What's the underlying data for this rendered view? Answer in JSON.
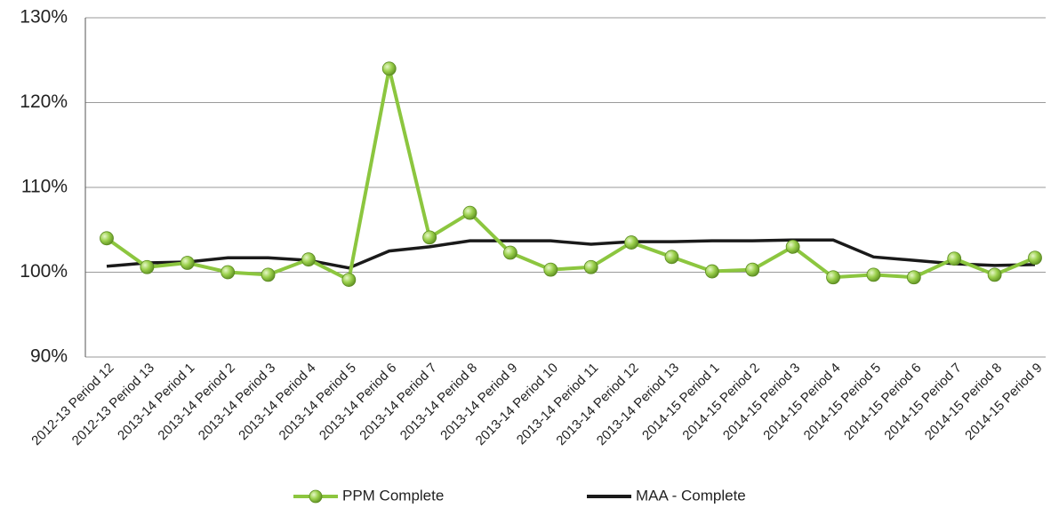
{
  "chart_data": {
    "type": "line",
    "categories": [
      "2012-13 Period 12",
      "2012-13 Period 13",
      "2013-14 Period 1",
      "2013-14 Period 2",
      "2013-14 Period 3",
      "2013-14 Period 4",
      "2013-14 Period 5",
      "2013-14 Period 6",
      "2013-14 Period 7",
      "2013-14 Period 8",
      "2013-14 Period 9",
      "2013-14 Period 10",
      "2013-14 Period 11",
      "2013-14 Period 12",
      "2013-14 Period 13",
      "2014-15 Period 1",
      "2014-15 Period 2",
      "2014-15 Period 3",
      "2014-15 Period 4",
      "2014-15 Period 5",
      "2014-15 Period 6",
      "2014-15 Period 7",
      "2014-15 Period 8",
      "2014-15 Period 9"
    ],
    "series": [
      {
        "name": "PPM Complete",
        "color": "#8cc63f",
        "values": [
          104.0,
          100.6,
          101.1,
          100.0,
          99.7,
          101.5,
          99.1,
          124.0,
          104.1,
          107.0,
          102.3,
          100.3,
          100.6,
          103.5,
          101.8,
          100.1,
          100.3,
          103.0,
          99.4,
          99.7,
          99.4,
          101.6,
          99.7,
          101.7
        ]
      },
      {
        "name": "MAA - Complete",
        "color": "#1a1a1a",
        "values": [
          100.7,
          101.1,
          101.2,
          101.7,
          101.7,
          101.4,
          100.5,
          102.5,
          103.0,
          103.7,
          103.7,
          103.7,
          103.3,
          103.6,
          103.6,
          103.7,
          103.7,
          103.8,
          103.8,
          101.8,
          101.4,
          101.0,
          100.8,
          100.9
        ]
      }
    ],
    "ylim": [
      90,
      130
    ],
    "yticks": [
      {
        "value": 90,
        "label": "90%"
      },
      {
        "value": 100,
        "label": "100%"
      },
      {
        "value": 110,
        "label": "110%"
      },
      {
        "value": 120,
        "label": "120%"
      },
      {
        "value": 130,
        "label": "130%"
      }
    ],
    "grid": true,
    "legend": "bottom"
  }
}
